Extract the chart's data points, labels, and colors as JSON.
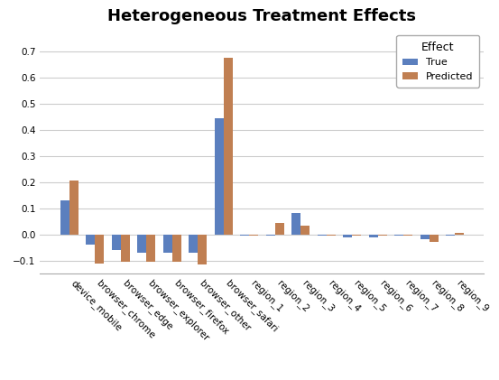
{
  "title": "Heterogeneous Treatment Effects",
  "categories": [
    "device_mobile",
    "browser_chrome",
    "browser_edge",
    "browser_explorer",
    "browser_firefox",
    "browser_other",
    "browser_safari",
    "region_1",
    "region_2",
    "region_3",
    "region_4",
    "region_5",
    "region_6",
    "region_7",
    "region_8",
    "region_9"
  ],
  "true_values": [
    0.13,
    -0.04,
    -0.06,
    -0.07,
    -0.07,
    -0.07,
    0.445,
    -0.005,
    -0.005,
    0.08,
    -0.005,
    -0.01,
    -0.01,
    -0.005,
    -0.02,
    -0.005
  ],
  "predicted_values": [
    0.205,
    -0.11,
    -0.105,
    -0.105,
    -0.105,
    -0.115,
    0.675,
    -0.005,
    0.042,
    0.035,
    -0.005,
    -0.005,
    -0.005,
    -0.005,
    -0.03,
    0.005
  ],
  "true_color": "#5b7fbe",
  "predicted_color": "#c07f52",
  "ylim": [
    -0.15,
    0.78
  ],
  "yticks": [
    -0.1,
    0.0,
    0.1,
    0.2,
    0.3,
    0.4,
    0.5,
    0.6,
    0.7
  ],
  "legend_title": "Effect",
  "legend_labels": [
    "True",
    "Predicted"
  ],
  "background_color": "#ffffff",
  "bar_width": 0.35,
  "title_fontsize": 13,
  "tick_fontsize": 7.5
}
